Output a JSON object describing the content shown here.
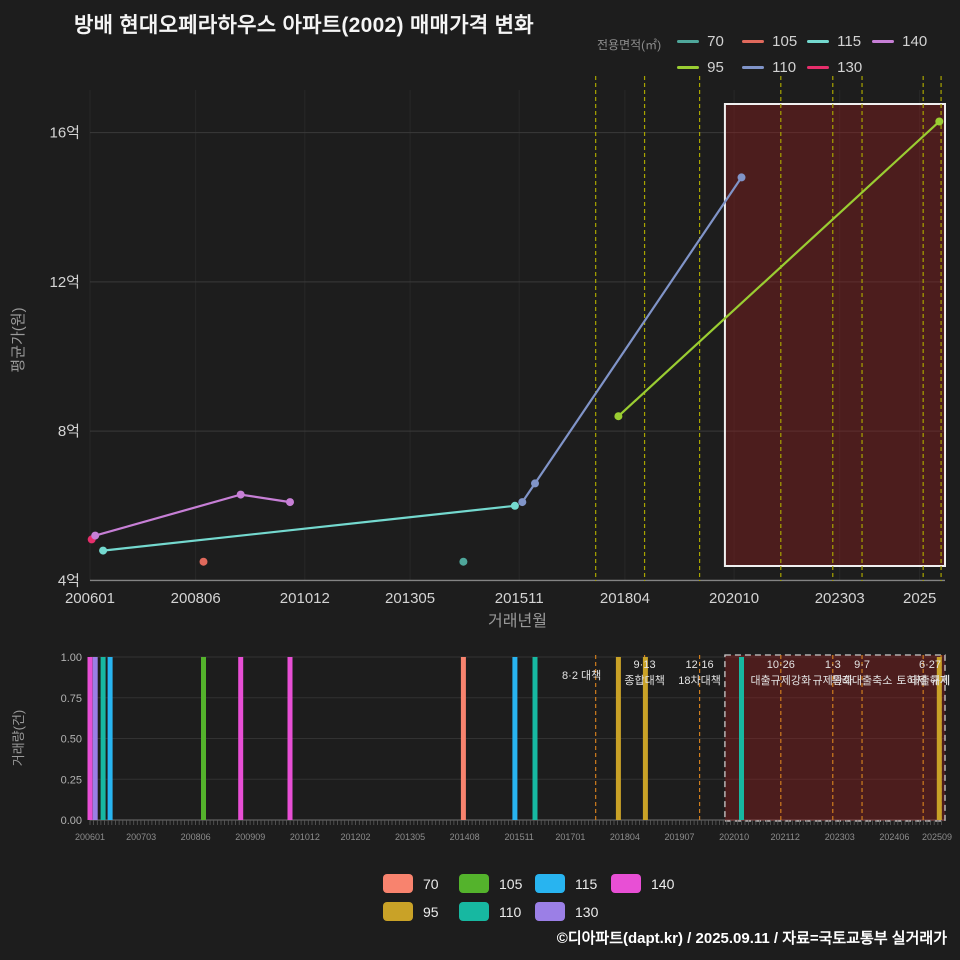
{
  "footer": "©디아파트(dapt.kr) / 2025.09.11 / 자료=국토교통부 실거래가",
  "legend_top": {
    "heading": "전용면적(㎡)",
    "rows": [
      [
        {
          "label": "70",
          "color": "#4fa79b"
        },
        {
          "label": "105",
          "color": "#e0695c"
        },
        {
          "label": "115",
          "color": "#74d9cf"
        },
        {
          "label": "140",
          "color": "#c77fd6"
        }
      ],
      [
        {
          "label": "95",
          "color": "#9acd32"
        },
        {
          "label": "110",
          "color": "#8094c8"
        },
        {
          "label": "130",
          "color": "#e62e6b"
        }
      ]
    ]
  },
  "legend_bottom": {
    "rows": [
      [
        {
          "label": "70",
          "color": "#f8836e"
        },
        {
          "label": "105",
          "color": "#54b32c"
        },
        {
          "label": "115",
          "color": "#28b4f0"
        },
        {
          "label": "140",
          "color": "#e84fd5"
        }
      ],
      [
        {
          "label": "95",
          "color": "#c9a227"
        },
        {
          "label": "110",
          "color": "#17b8a1"
        },
        {
          "label": "130",
          "color": "#9b7fe6"
        }
      ]
    ]
  },
  "chart_data": [
    {
      "type": "line",
      "title": "방배 현대오페라하우스 아파트(2002) 매매가격 변화",
      "xlabel": "거래년월",
      "ylabel": "평균가(원)",
      "unit": "억원",
      "x_range": [
        2006.0,
        2025.58
      ],
      "y_range": [
        3.85,
        17.05
      ],
      "grid": true,
      "legend_position": "top-right",
      "y_ticks": [
        {
          "value": 4,
          "label": "4억"
        },
        {
          "value": 8,
          "label": "8억"
        },
        {
          "value": 12,
          "label": "12억"
        },
        {
          "value": 16,
          "label": "16억"
        }
      ],
      "x_ticks": [
        {
          "t": 2006.0,
          "label": "200601"
        },
        {
          "t": 2008.42,
          "label": "200806"
        },
        {
          "t": 2010.92,
          "label": "201012"
        },
        {
          "t": 2013.33,
          "label": "201305"
        },
        {
          "t": 2015.83,
          "label": "201511"
        },
        {
          "t": 2018.25,
          "label": "201804"
        },
        {
          "t": 2020.75,
          "label": "202010"
        },
        {
          "t": 2023.17,
          "label": "202303"
        },
        {
          "t": 2025.0,
          "label": "2025"
        }
      ],
      "series": [
        {
          "name": "70",
          "color": "#4fa79b",
          "points": [
            {
              "t": 2014.55,
              "ym": "201407",
              "price_eok": 4.5
            }
          ]
        },
        {
          "name": "95",
          "color": "#9acd32",
          "points": [
            {
              "t": 2018.1,
              "ym": "201801",
              "price_eok": 8.4
            },
            {
              "t": 2025.45,
              "ym": "202506",
              "price_eok": 16.3
            }
          ]
        },
        {
          "name": "105",
          "color": "#e0695c",
          "points": [
            {
              "t": 2008.6,
              "ym": "200808",
              "price_eok": 4.5
            }
          ]
        },
        {
          "name": "110",
          "color": "#8094c8",
          "points": [
            {
              "t": 2015.9,
              "ym": "201511",
              "price_eok": 6.1
            },
            {
              "t": 2016.19,
              "ym": "201603",
              "price_eok": 6.6
            },
            {
              "t": 2020.92,
              "ym": "202011",
              "price_eok": 14.8
            }
          ]
        },
        {
          "name": "115",
          "color": "#74d9cf",
          "points": [
            {
              "t": 2006.3,
              "ym": "200604",
              "price_eok": 4.8
            },
            {
              "t": 2015.73,
              "ym": "201510",
              "price_eok": 6.0
            }
          ]
        },
        {
          "name": "130",
          "color": "#e62e6b",
          "points": [
            {
              "t": 2006.04,
              "ym": "200601",
              "price_eok": 5.1
            }
          ]
        },
        {
          "name": "140",
          "color": "#c77fd6",
          "points": [
            {
              "t": 2006.12,
              "ym": "200602",
              "price_eok": 5.2
            },
            {
              "t": 2009.45,
              "ym": "200906",
              "price_eok": 6.3
            },
            {
              "t": 2010.58,
              "ym": "201007",
              "price_eok": 6.1
            }
          ]
        }
      ],
      "annotations": [
        {
          "t": 2017.58,
          "lines": [
            "8·2 대책",
            ""
          ]
        },
        {
          "t": 2018.7,
          "lines": [
            "9·13",
            "종합대책"
          ]
        },
        {
          "t": 2019.96,
          "lines": [
            "12·16",
            "18차대책"
          ]
        },
        {
          "t": 2021.82,
          "lines": [
            "10·26",
            "대출규제강화"
          ]
        },
        {
          "t": 2023.01,
          "lines": [
            "1·3",
            "규제완화"
          ]
        },
        {
          "t": 2023.68,
          "lines": [
            "9·7",
            "특례대출축소"
          ]
        },
        {
          "t": 2025.08,
          "lines": [
            "",
            "토허제 해제"
          ]
        },
        {
          "t": 2025.49,
          "lines": [
            "6·27",
            "대출규제"
          ]
        }
      ],
      "highlight": {
        "t_start": 2020.54,
        "t_end": 2025.58
      }
    },
    {
      "type": "bar",
      "title": "",
      "xlabel": "",
      "ylabel": "거래량(건)",
      "y_range": [
        0,
        1
      ],
      "y_ticks": [
        {
          "value": 0,
          "label": "0.00"
        },
        {
          "value": 0.25,
          "label": "0.25"
        },
        {
          "value": 0.5,
          "label": "0.50"
        },
        {
          "value": 0.75,
          "label": "0.75"
        },
        {
          "value": 1,
          "label": "1.00"
        }
      ],
      "x_ticks": [
        {
          "t": 2006.0,
          "label": "200601"
        },
        {
          "t": 2007.17,
          "label": "200703"
        },
        {
          "t": 2008.42,
          "label": "200806"
        },
        {
          "t": 2009.67,
          "label": "200909"
        },
        {
          "t": 2010.92,
          "label": "201012"
        },
        {
          "t": 2012.08,
          "label": "201202"
        },
        {
          "t": 2013.33,
          "label": "201305"
        },
        {
          "t": 2014.58,
          "label": "201408"
        },
        {
          "t": 2015.83,
          "label": "201511"
        },
        {
          "t": 2017.0,
          "label": "201701"
        },
        {
          "t": 2018.25,
          "label": "201804"
        },
        {
          "t": 2019.5,
          "label": "201907"
        },
        {
          "t": 2020.75,
          "label": "202010"
        },
        {
          "t": 2021.92,
          "label": "202112"
        },
        {
          "t": 2023.17,
          "label": "202303"
        },
        {
          "t": 2024.42,
          "label": "202406"
        },
        {
          "t": 2025.58,
          "label": "202509"
        }
      ],
      "colors": {
        "70": "#f8836e",
        "95": "#c9a227",
        "105": "#54b32c",
        "110": "#17b8a1",
        "115": "#28b4f0",
        "130": "#9b7fe6",
        "140": "#e84fd5"
      },
      "bars": [
        {
          "t": 2006.0,
          "series": "140",
          "count": 1
        },
        {
          "t": 2006.12,
          "series": "130",
          "count": 1
        },
        {
          "t": 2006.3,
          "series": "110",
          "count": 1
        },
        {
          "t": 2006.46,
          "series": "115",
          "count": 1
        },
        {
          "t": 2008.6,
          "series": "105",
          "count": 1
        },
        {
          "t": 2009.45,
          "series": "140",
          "count": 1
        },
        {
          "t": 2010.58,
          "series": "140",
          "count": 1
        },
        {
          "t": 2014.55,
          "series": "70",
          "count": 1
        },
        {
          "t": 2015.73,
          "series": "115",
          "count": 1
        },
        {
          "t": 2016.19,
          "series": "110",
          "count": 1
        },
        {
          "t": 2018.1,
          "series": "95",
          "count": 1
        },
        {
          "t": 2018.72,
          "series": "95",
          "count": 1
        },
        {
          "t": 2020.92,
          "series": "110",
          "count": 1
        },
        {
          "t": 2025.45,
          "series": "95",
          "count": 1
        }
      ]
    }
  ]
}
